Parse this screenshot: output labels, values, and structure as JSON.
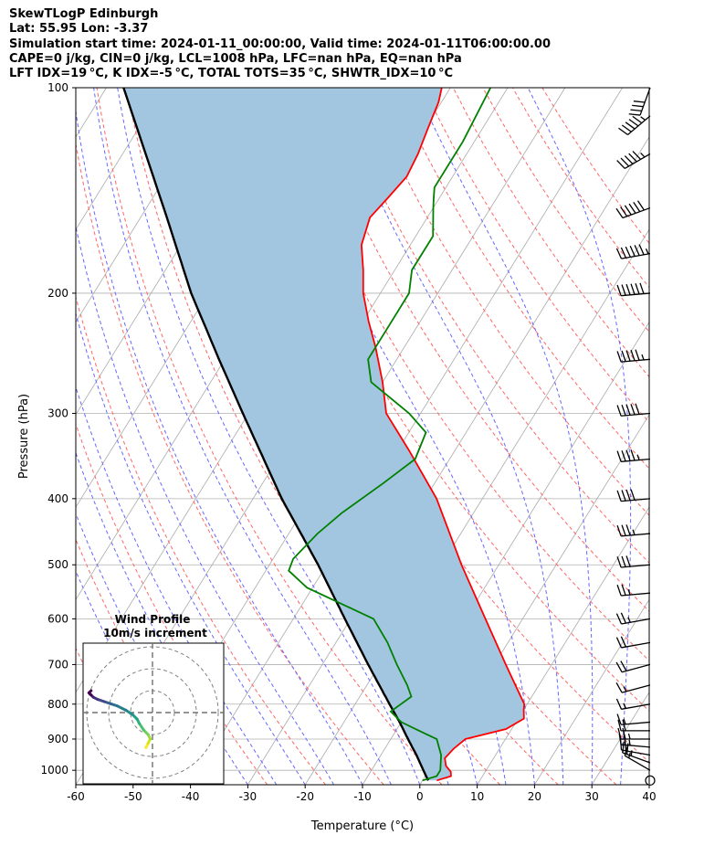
{
  "header": {
    "title": "SkewTLogP Edinburgh",
    "location": "Lat: 55.95   Lon: -3.37",
    "times": "Simulation start time: 2024-01-11_00:00:00, Valid time: 2024-01-11T06:00:00.00",
    "params1": "CAPE=0 j/kg, CIN=0 j/kg, LCL=1008 hPa, LFC=nan hPa, EQ=nan hPa",
    "params2": "LFT IDX=19 °C, K IDX=-5 °C, TOTAL TOTS=35 °C, SHWTR_IDX=10 °C"
  },
  "chart_data": {
    "type": "line",
    "xlabel": "Temperature (°C)",
    "ylabel": "Pressure (hPa)",
    "xlim": [
      -60,
      40
    ],
    "ylim": [
      1050,
      100
    ],
    "y_scale": "log",
    "x_ticks": [
      -60,
      -50,
      -40,
      -30,
      -20,
      -10,
      0,
      10,
      20,
      30,
      40
    ],
    "y_ticks": [
      1000,
      900,
      800,
      700,
      600,
      500,
      400,
      300,
      200,
      100
    ],
    "grid": true,
    "colors": {
      "temperature": "#ff0000",
      "dewpoint": "#008000",
      "parcel": "#000000",
      "shading": "#a3c6e0",
      "dry_adiabats": "#ff6666",
      "moist_adiabats": "#6666ff",
      "isotherms": "#aaaaaa"
    },
    "series": [
      {
        "key": "temperature",
        "pressure": [
          1035,
          1020,
          1005,
          985,
          960,
          930,
          900,
          870,
          840,
          815,
          800,
          700,
          600,
          500,
          400,
          340,
          300,
          270,
          240,
          220,
          200,
          185,
          170,
          155,
          145,
          135,
          125,
          115,
          105,
          100
        ],
        "temperature": [
          2.5,
          4.5,
          4.0,
          2.5,
          1.5,
          2.0,
          3.0,
          9.0,
          11.0,
          10.0,
          9.5,
          2.0,
          -6.5,
          -16.5,
          -28.0,
          -38.0,
          -46.0,
          -50.0,
          -55.0,
          -59.0,
          -63.0,
          -65.5,
          -68.5,
          -70.0,
          -69.0,
          -68.0,
          -68.5,
          -69.5,
          -70.5,
          -71.5
        ]
      },
      {
        "key": "dewpoint",
        "pressure": [
          1035,
          1020,
          1000,
          950,
          900,
          875,
          850,
          820,
          780,
          750,
          700,
          650,
          600,
          540,
          510,
          490,
          450,
          420,
          380,
          350,
          320,
          300,
          270,
          250,
          230,
          210,
          200,
          185,
          165,
          150,
          145,
          140,
          120,
          100
        ],
        "dewpoint": [
          0.0,
          2.0,
          2.0,
          0.5,
          -2.0,
          -6.0,
          -10.0,
          -13.0,
          -11.0,
          -13.0,
          -17.0,
          -21.0,
          -26.0,
          -41.0,
          -46.0,
          -46.5,
          -45.0,
          -43.0,
          -39.0,
          -36.0,
          -37.0,
          -42.0,
          -52.0,
          -55.0,
          -55.0,
          -55.0,
          -55.0,
          -57.0,
          -57.0,
          -60.0,
          -61.0,
          -62.0,
          -62.0,
          -63.0
        ]
      },
      {
        "key": "parcel",
        "pressure": [
          1035,
          1008,
          950,
          900,
          850,
          800,
          700,
          600,
          500,
          400,
          300,
          250,
          200,
          150,
          100
        ],
        "temperature": [
          1.0,
          -0.5,
          -3.8,
          -7.0,
          -10.3,
          -14.0,
          -22.0,
          -31.0,
          -41.5,
          -55.0,
          -71.0,
          -81.0,
          -93.0,
          -107.0,
          -127.0
        ]
      }
    ],
    "inset": {
      "title": "Wind Profile",
      "subtitle": "10m/s increment",
      "ring_radii_ms": [
        10,
        20,
        30
      ],
      "hodograph_u": [
        -3,
        -2,
        -1,
        -2,
        -4,
        -6,
        -7,
        -9,
        -12,
        -16,
        -19,
        -22,
        -25,
        -27,
        -28,
        -29,
        -29,
        -28
      ],
      "hodograph_v": [
        -16,
        -14,
        -12,
        -10,
        -8,
        -5,
        -3,
        -1,
        1,
        3,
        4,
        5,
        6,
        7,
        8,
        9,
        9,
        10
      ]
    },
    "wind_barbs": {
      "pressure": [
        1035,
        1000,
        975,
        950,
        925,
        900,
        875,
        850,
        800,
        750,
        700,
        650,
        600,
        550,
        500,
        450,
        400,
        350,
        300,
        250,
        200,
        175,
        150,
        125,
        110,
        100
      ],
      "speed_kt": [
        0,
        15,
        25,
        20,
        25,
        25,
        20,
        15,
        15,
        15,
        20,
        20,
        25,
        25,
        30,
        35,
        40,
        45,
        50,
        55,
        60,
        65,
        60,
        55,
        55,
        40
      ],
      "direction_deg": [
        0,
        300,
        290,
        280,
        275,
        270,
        270,
        265,
        260,
        255,
        255,
        260,
        260,
        265,
        265,
        265,
        265,
        265,
        265,
        265,
        265,
        260,
        250,
        240,
        230,
        200
      ]
    }
  }
}
